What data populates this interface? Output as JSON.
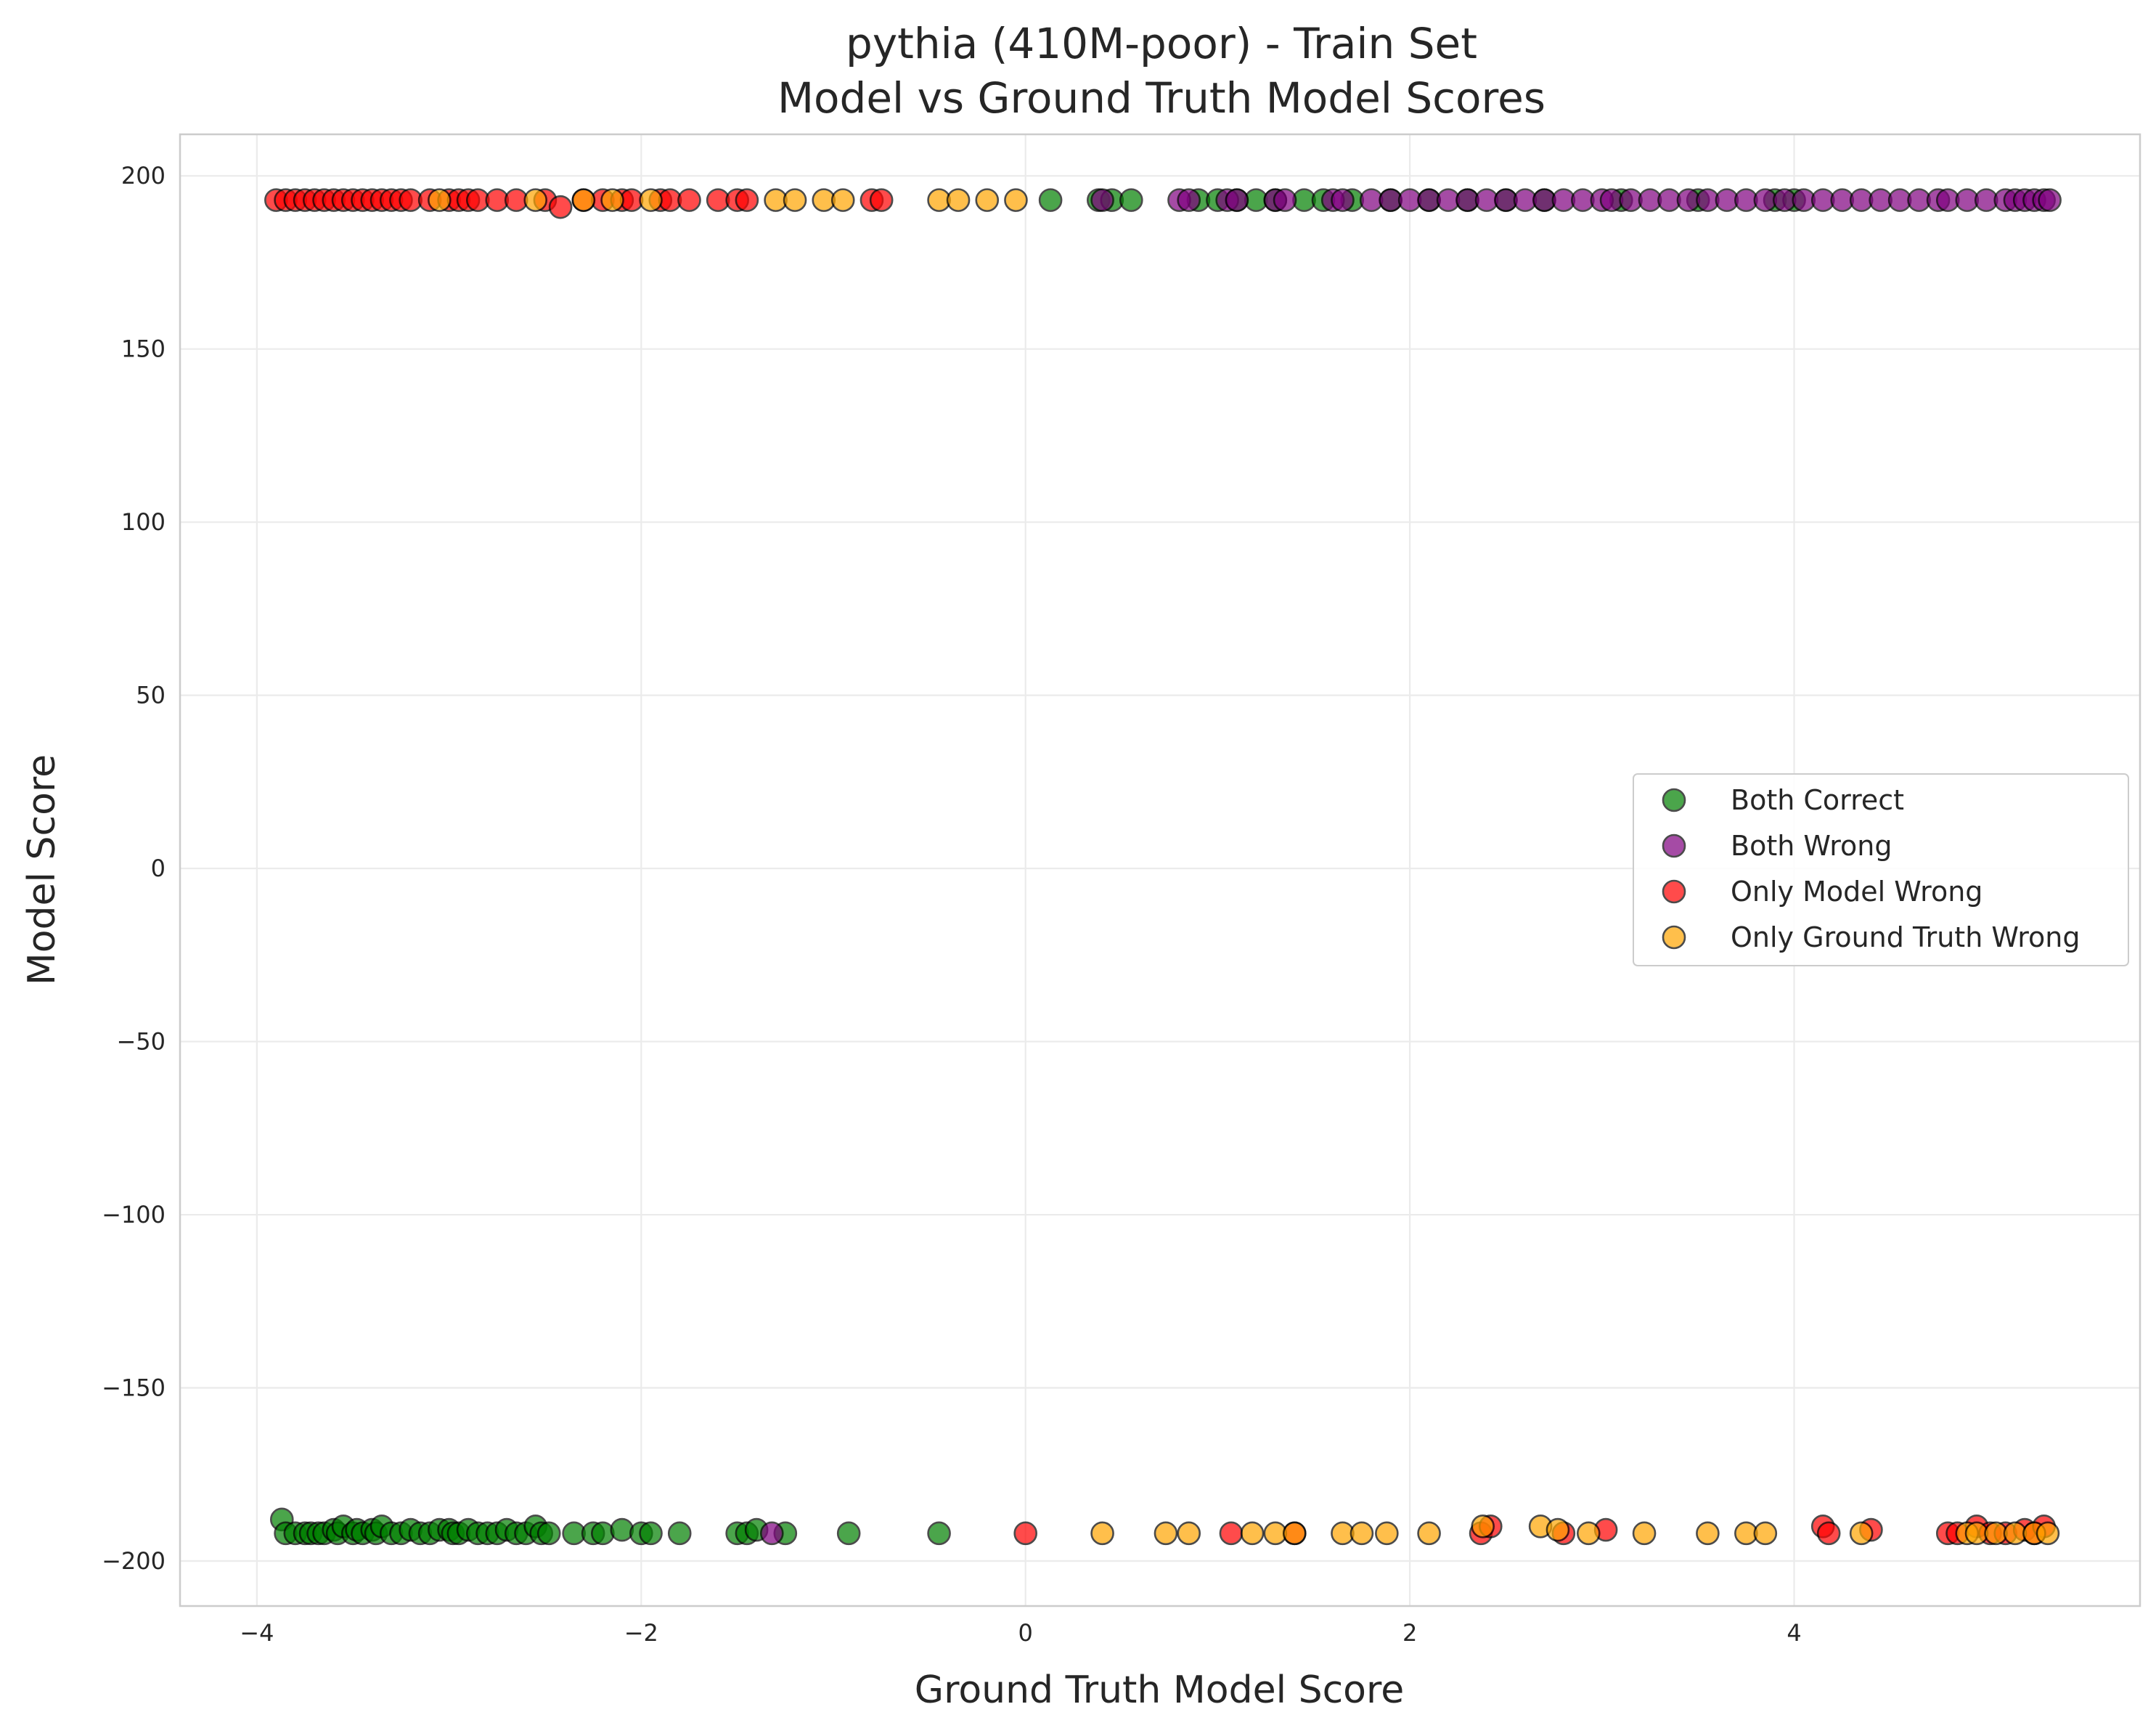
{
  "chart_data": {
    "type": "scatter",
    "title": "pythia (410M-poor) - Train Set",
    "subtitle": "Model vs Ground Truth Model Scores",
    "xlabel": "Ground Truth Model Score",
    "ylabel": "Model Score",
    "xlim": [
      -4.4,
      5.8
    ],
    "ylim": [
      -213,
      212
    ],
    "x_ticks": [
      -4,
      -2,
      0,
      2,
      4
    ],
    "x_tick_labels": [
      "−4",
      "−2",
      "0",
      "2",
      "4"
    ],
    "y_ticks": [
      -200,
      -150,
      -100,
      -50,
      0,
      50,
      100,
      150,
      200
    ],
    "y_tick_labels": [
      "−200",
      "−150",
      "−100",
      "−50",
      "0",
      "50",
      "100",
      "150",
      "200"
    ],
    "grid": true,
    "legend_position": "center-right",
    "series": [
      {
        "name": "Both Correct",
        "color": "#008000",
        "x": [
          -3.87,
          -3.85,
          -3.8,
          -3.75,
          -3.72,
          -3.68,
          -3.65,
          -3.6,
          -3.58,
          -3.55,
          -3.5,
          -3.48,
          -3.45,
          -3.4,
          -3.38,
          -3.35,
          -3.3,
          -3.25,
          -3.2,
          -3.15,
          -3.1,
          -3.05,
          -3.0,
          -2.98,
          -2.95,
          -2.9,
          -2.85,
          -2.8,
          -2.75,
          -2.7,
          -2.65,
          -2.6,
          -2.55,
          -2.52,
          -2.48,
          -2.35,
          -2.25,
          -2.2,
          -2.1,
          -2.0,
          -1.95,
          -1.8,
          -1.5,
          -1.45,
          -1.4,
          -1.25,
          -0.92,
          -0.45,
          0.13,
          0.38,
          0.45,
          0.55,
          0.9,
          1.0,
          1.1,
          1.2,
          1.3,
          1.45,
          1.55,
          1.7,
          1.9,
          2.1,
          2.3,
          2.5,
          2.7,
          3.1,
          3.5,
          3.9,
          4.0
        ],
        "y": [
          -188,
          -192,
          -192,
          -192,
          -192,
          -192,
          -192,
          -191,
          -192,
          -190,
          -192,
          -191,
          -192,
          -191,
          -192,
          -190,
          -192,
          -192,
          -191,
          -192,
          -192,
          -191,
          -191,
          -192,
          -192,
          -191,
          -192,
          -192,
          -192,
          -191,
          -192,
          -192,
          -190,
          -192,
          -192,
          -192,
          -192,
          -192,
          -191,
          -192,
          -192,
          -192,
          -192,
          -192,
          -191,
          -192,
          -192,
          -192,
          193,
          193,
          193,
          193,
          193,
          193,
          193,
          193,
          193,
          193,
          193,
          193,
          193,
          193,
          193,
          193,
          193,
          193,
          193,
          193,
          193
        ]
      },
      {
        "name": "Both Wrong",
        "color": "#800080",
        "x": [
          -1.32,
          0.4,
          0.8,
          0.85,
          1.05,
          1.1,
          1.3,
          1.35,
          1.6,
          1.65,
          1.8,
          1.9,
          2.0,
          2.1,
          2.2,
          2.3,
          2.4,
          2.5,
          2.6,
          2.7,
          2.8,
          2.9,
          3.0,
          3.05,
          3.15,
          3.25,
          3.35,
          3.45,
          3.55,
          3.65,
          3.75,
          3.85,
          3.95,
          4.05,
          4.15,
          4.25,
          4.35,
          4.45,
          4.55,
          4.65,
          4.75,
          4.8,
          4.9,
          5.0,
          5.1,
          5.15,
          5.2,
          5.25,
          5.3,
          5.33
        ],
        "y": [
          -192,
          193,
          193,
          193,
          193,
          193,
          193,
          193,
          193,
          193,
          193,
          193,
          193,
          193,
          193,
          193,
          193,
          193,
          193,
          193,
          193,
          193,
          193,
          193,
          193,
          193,
          193,
          193,
          193,
          193,
          193,
          193,
          193,
          193,
          193,
          193,
          193,
          193,
          193,
          193,
          193,
          193,
          193,
          193,
          193,
          193,
          193,
          193,
          193,
          193
        ]
      },
      {
        "name": "Only Model Wrong",
        "color": "#ff0000",
        "x": [
          -3.9,
          -3.85,
          -3.8,
          -3.75,
          -3.7,
          -3.65,
          -3.6,
          -3.55,
          -3.5,
          -3.45,
          -3.4,
          -3.35,
          -3.3,
          -3.25,
          -3.2,
          -3.1,
          -3.0,
          -2.95,
          -2.9,
          -2.85,
          -2.75,
          -2.65,
          -2.5,
          -2.42,
          -2.3,
          -2.2,
          -2.1,
          -2.05,
          -1.9,
          -1.85,
          -1.75,
          -1.6,
          -1.5,
          -1.45,
          -0.8,
          -0.75,
          0.0,
          1.07,
          1.4,
          2.37,
          2.42,
          2.8,
          3.02,
          4.15,
          4.18,
          4.4,
          4.8,
          4.85,
          4.95,
          5.02,
          5.1,
          5.2,
          5.25,
          5.3
        ],
        "y": [
          193,
          193,
          193,
          193,
          193,
          193,
          193,
          193,
          193,
          193,
          193,
          193,
          193,
          193,
          193,
          193,
          193,
          193,
          193,
          193,
          193,
          193,
          193,
          191,
          193,
          193,
          193,
          193,
          193,
          193,
          193,
          193,
          193,
          193,
          193,
          193,
          -192,
          -192,
          -192,
          -192,
          -190,
          -192,
          -191,
          -190,
          -192,
          -191,
          -192,
          -192,
          -190,
          -192,
          -192,
          -191,
          -192,
          -190
        ],
        "layer_front": [
          false,
          true,
          true,
          true,
          true,
          true,
          true,
          true,
          true,
          true,
          true,
          true,
          true,
          true,
          true,
          true,
          true,
          true,
          true,
          true,
          true,
          true,
          true,
          true,
          true,
          true,
          true,
          true,
          true,
          true,
          true,
          true,
          true,
          true,
          true,
          true,
          true,
          true,
          true,
          true,
          true,
          true,
          true,
          true,
          true,
          true,
          true,
          true,
          true,
          true,
          true,
          true,
          true,
          true
        ]
      },
      {
        "name": "Only Ground Truth Wrong",
        "color": "#ffa500",
        "x": [
          -3.05,
          -2.55,
          -2.3,
          -2.15,
          -1.95,
          -1.3,
          -1.2,
          -1.05,
          -0.95,
          -0.45,
          -0.35,
          -0.2,
          -0.05,
          0.4,
          0.73,
          0.85,
          1.18,
          1.3,
          1.4,
          1.65,
          1.75,
          1.88,
          2.1,
          2.38,
          2.68,
          2.77,
          2.93,
          3.22,
          3.55,
          3.75,
          3.85,
          4.35,
          4.9,
          4.95,
          5.05,
          5.15,
          5.25,
          5.32
        ],
        "y": [
          193,
          193,
          193,
          193,
          193,
          193,
          193,
          193,
          193,
          193,
          193,
          193,
          193,
          -192,
          -192,
          -192,
          -192,
          -192,
          -192,
          -192,
          -192,
          -192,
          -192,
          -190,
          -190,
          -191,
          -192,
          -192,
          -192,
          -192,
          -192,
          -192,
          -192,
          -192,
          -192,
          -192,
          -192,
          -192
        ]
      }
    ]
  }
}
